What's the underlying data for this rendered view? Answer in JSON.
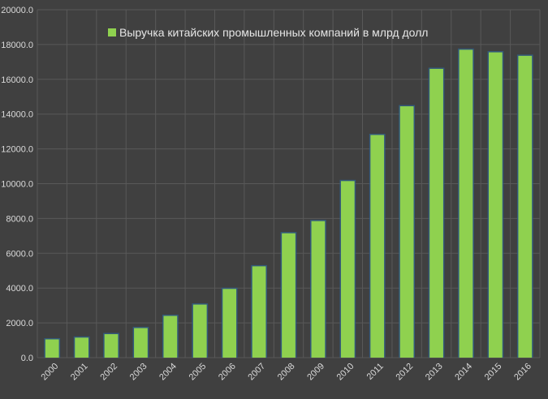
{
  "colors": {
    "background": "#404040",
    "bar_fill": "#8fd14f",
    "bar_outline": "#2f5f8a",
    "grid": "#595959",
    "text": "#d9d9d9"
  },
  "chart_data": {
    "type": "bar",
    "title": "",
    "xlabel": "",
    "ylabel": "",
    "legend_position": "top-left",
    "grid": true,
    "ylim": [
      0,
      20000
    ],
    "y_ticks": [
      "0.0",
      "2000.0",
      "4000.0",
      "6000.0",
      "8000.0",
      "10000.0",
      "12000.0",
      "14000.0",
      "16000.0",
      "18000.0",
      "20000.0"
    ],
    "categories": [
      "2000",
      "2001",
      "2002",
      "2003",
      "2004",
      "2005",
      "2006",
      "2007",
      "2008",
      "2009",
      "2010",
      "2011",
      "2012",
      "2013",
      "2014",
      "2015",
      "2016"
    ],
    "series": [
      {
        "name": "Выручка китайских промышленных компаний в млрд долл",
        "values": [
          1050,
          1150,
          1350,
          1700,
          2400,
          3050,
          3950,
          5250,
          7150,
          7850,
          10150,
          12800,
          14450,
          16600,
          17700,
          17550,
          17350
        ]
      }
    ]
  }
}
